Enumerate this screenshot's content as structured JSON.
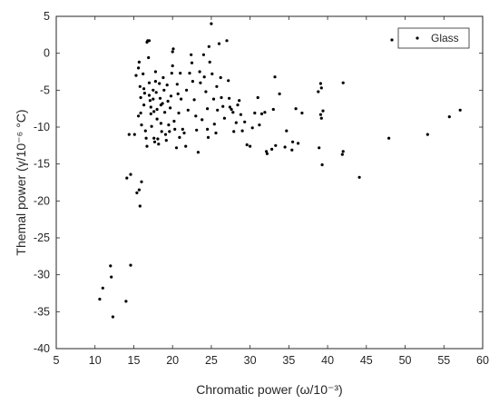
{
  "chart_data": {
    "type": "scatter",
    "title": "",
    "xlabel": "Chromatic power (ω/10⁻³)",
    "ylabel": "Themal power (γ/10⁻⁶ °C)",
    "xlim": [
      5,
      60
    ],
    "ylim": [
      -40,
      5
    ],
    "x_ticks": [
      "5",
      "10",
      "15",
      "20",
      "25",
      "30",
      "35",
      "40",
      "45",
      "50",
      "55",
      "60"
    ],
    "y_ticks": [
      "5",
      "0",
      "-5",
      "-10",
      "-15",
      "-20",
      "-25",
      "-30",
      "-35",
      "-40"
    ],
    "grid": false,
    "legend_position": "top-right",
    "series": [
      {
        "name": "Glass",
        "color": "#000000",
        "marker": "dot",
        "points": [
          [
            10.6,
            -33.3
          ],
          [
            11.0,
            -31.8
          ],
          [
            12.0,
            -28.8
          ],
          [
            12.1,
            -30.3
          ],
          [
            12.3,
            -35.7
          ],
          [
            14.0,
            -33.6
          ],
          [
            14.1,
            -16.9
          ],
          [
            14.6,
            -16.4
          ],
          [
            14.6,
            -28.7
          ],
          [
            14.4,
            -11.0
          ],
          [
            15.1,
            -11.0
          ],
          [
            15.4,
            -18.9
          ],
          [
            15.8,
            -20.7
          ],
          [
            15.7,
            -18.5
          ],
          [
            16.0,
            -17.4
          ],
          [
            15.3,
            -3.0
          ],
          [
            15.6,
            -2.0
          ],
          [
            15.7,
            -1.2
          ],
          [
            15.8,
            -4.5
          ],
          [
            15.9,
            -6.0
          ],
          [
            15.6,
            -8.5
          ],
          [
            15.9,
            -8.1
          ],
          [
            16.0,
            -9.7
          ],
          [
            16.2,
            -2.8
          ],
          [
            16.3,
            -4.8
          ],
          [
            16.4,
            -5.4
          ],
          [
            16.3,
            -7.0
          ],
          [
            16.5,
            -10.5
          ],
          [
            16.6,
            -11.5
          ],
          [
            16.7,
            -12.6
          ],
          [
            16.7,
            1.5
          ],
          [
            16.8,
            1.7
          ],
          [
            17.0,
            1.7
          ],
          [
            16.9,
            -0.6
          ],
          [
            17.0,
            -4.0
          ],
          [
            17.0,
            -5.7
          ],
          [
            17.1,
            -6.4
          ],
          [
            17.2,
            -7.3
          ],
          [
            17.2,
            -8.2
          ],
          [
            17.3,
            -9.9
          ],
          [
            17.5,
            -5.0
          ],
          [
            17.5,
            -6.2
          ],
          [
            17.6,
            -7.9
          ],
          [
            17.6,
            -11.5
          ],
          [
            17.7,
            -12.0
          ],
          [
            17.8,
            -2.5
          ],
          [
            17.8,
            -3.8
          ],
          [
            17.9,
            -5.3
          ],
          [
            18.0,
            -7.6
          ],
          [
            18.0,
            -8.9
          ],
          [
            18.1,
            -11.6
          ],
          [
            18.2,
            -12.3
          ],
          [
            18.3,
            -4.1
          ],
          [
            18.4,
            -6.1
          ],
          [
            18.5,
            -7.0
          ],
          [
            18.5,
            -9.5
          ],
          [
            18.6,
            -10.6
          ],
          [
            18.7,
            -6.8
          ],
          [
            18.8,
            -3.3
          ],
          [
            18.9,
            -5.0
          ],
          [
            19.0,
            -8.0
          ],
          [
            19.1,
            -11.0
          ],
          [
            19.2,
            -11.8
          ],
          [
            19.3,
            -4.3
          ],
          [
            19.4,
            -6.5
          ],
          [
            19.5,
            -9.7
          ],
          [
            19.6,
            -10.6
          ],
          [
            19.7,
            -7.4
          ],
          [
            19.8,
            -5.8
          ],
          [
            19.9,
            -2.7
          ],
          [
            20.0,
            -1.7
          ],
          [
            20.0,
            0.2
          ],
          [
            20.1,
            0.6
          ],
          [
            20.2,
            -9.2
          ],
          [
            20.3,
            -10.3
          ],
          [
            20.5,
            -12.8
          ],
          [
            20.6,
            -4.2
          ],
          [
            20.7,
            -5.5
          ],
          [
            20.8,
            -8.1
          ],
          [
            20.9,
            -11.4
          ],
          [
            21.0,
            -2.7
          ],
          [
            21.1,
            -6.2
          ],
          [
            21.3,
            -10.3
          ],
          [
            21.5,
            -10.8
          ],
          [
            21.7,
            -12.6
          ],
          [
            21.8,
            -5.0
          ],
          [
            22.0,
            -7.7
          ],
          [
            22.2,
            -2.7
          ],
          [
            22.4,
            -0.2
          ],
          [
            22.5,
            -1.3
          ],
          [
            22.6,
            -3.8
          ],
          [
            22.8,
            -6.3
          ],
          [
            23.0,
            -8.5
          ],
          [
            23.1,
            -10.4
          ],
          [
            23.3,
            -13.4
          ],
          [
            23.5,
            -2.5
          ],
          [
            23.6,
            -4.0
          ],
          [
            23.8,
            -9.0
          ],
          [
            24.0,
            -0.2
          ],
          [
            24.1,
            -3.2
          ],
          [
            24.3,
            -5.2
          ],
          [
            24.5,
            -7.5
          ],
          [
            24.5,
            -10.3
          ],
          [
            24.6,
            -11.4
          ],
          [
            24.7,
            0.9
          ],
          [
            24.8,
            -1.2
          ],
          [
            25.0,
            4.0
          ],
          [
            25.1,
            -2.8
          ],
          [
            25.3,
            -6.2
          ],
          [
            25.4,
            -9.6
          ],
          [
            25.6,
            -10.8
          ],
          [
            25.7,
            -4.5
          ],
          [
            25.8,
            -7.7
          ],
          [
            26.0,
            1.3
          ],
          [
            26.2,
            -3.3
          ],
          [
            26.3,
            -6.0
          ],
          [
            26.5,
            -7.2
          ],
          [
            26.7,
            -8.8
          ],
          [
            27.0,
            1.7
          ],
          [
            27.2,
            -3.7
          ],
          [
            27.3,
            -6.1
          ],
          [
            27.4,
            -7.3
          ],
          [
            27.6,
            -7.6
          ],
          [
            27.8,
            -8.0
          ],
          [
            27.9,
            -10.6
          ],
          [
            28.2,
            -9.4
          ],
          [
            28.4,
            -7.0
          ],
          [
            28.6,
            -6.4
          ],
          [
            28.8,
            -8.3
          ],
          [
            29.0,
            -10.5
          ],
          [
            29.3,
            -9.3
          ],
          [
            29.6,
            -12.4
          ],
          [
            30.0,
            -12.6
          ],
          [
            30.3,
            -10.1
          ],
          [
            30.6,
            -8.1
          ],
          [
            31.0,
            -6.0
          ],
          [
            31.2,
            -9.7
          ],
          [
            31.5,
            -8.2
          ],
          [
            31.9,
            -8.0
          ],
          [
            32.1,
            -13.3
          ],
          [
            32.2,
            -13.6
          ],
          [
            32.8,
            -13.0
          ],
          [
            33.0,
            -7.6
          ],
          [
            33.2,
            -3.2
          ],
          [
            33.3,
            -12.5
          ],
          [
            33.8,
            -5.5
          ],
          [
            34.5,
            -12.7
          ],
          [
            34.7,
            -10.5
          ],
          [
            35.4,
            -13.1
          ],
          [
            35.5,
            -12.0
          ],
          [
            35.9,
            -7.5
          ],
          [
            36.2,
            -12.2
          ],
          [
            36.7,
            -8.1
          ],
          [
            38.8,
            -5.2
          ],
          [
            38.9,
            -12.8
          ],
          [
            39.1,
            -4.1
          ],
          [
            39.2,
            -4.7
          ],
          [
            39.1,
            -8.3
          ],
          [
            39.2,
            -8.8
          ],
          [
            39.3,
            -15.1
          ],
          [
            39.4,
            -7.8
          ],
          [
            41.9,
            -13.7
          ],
          [
            42.0,
            -13.3
          ],
          [
            42.0,
            -4.0
          ],
          [
            44.1,
            -16.8
          ],
          [
            47.9,
            -11.5
          ],
          [
            48.3,
            1.8
          ],
          [
            52.9,
            -11.0
          ],
          [
            55.7,
            -8.6
          ],
          [
            57.1,
            -7.7
          ]
        ]
      }
    ]
  }
}
